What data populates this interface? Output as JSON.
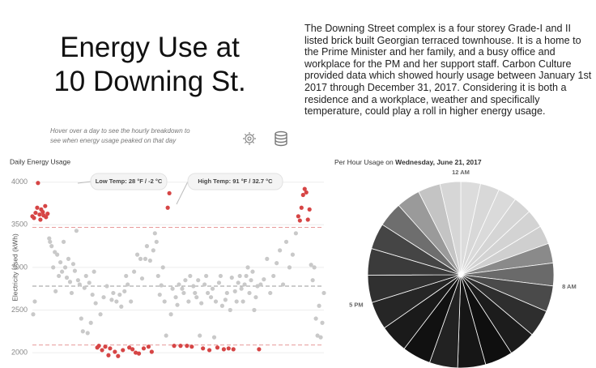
{
  "header": {
    "title": [
      "Energy Use at",
      "10 Downing St."
    ],
    "description": "The Downing Street complex is a four storey Grade-I and II listed brick built Georgian terraced townhouse. It is a home to the Prime Minister and her family, and a busy office and workplace for the PM and her support staff. Carbon Culture provided data  which showed hourly usage between January 1st 2017 through December 31, 2017. Considering it is both a residence and a workplace, weather and specifically temperature, could play a roll in higher energy usage.",
    "hint": "Hover over a day to see the hourly breakdown to see when energy usage peaked on that day"
  },
  "chart_data": [
    {
      "type": "scatter",
      "title": "Daily Energy Usage",
      "y_label": "Electricity Used (kWh)",
      "x": [
        1,
        2,
        3,
        4,
        5,
        7,
        8,
        10,
        11,
        12,
        14,
        15,
        17,
        18,
        20,
        22,
        23,
        25,
        27,
        29,
        30,
        32,
        34,
        36,
        38,
        40,
        42,
        44,
        46,
        48,
        50,
        52,
        54,
        56,
        58,
        60,
        62,
        64,
        66,
        68,
        70,
        72,
        74,
        76,
        78,
        80,
        82,
        84,
        86,
        88,
        90,
        92,
        94,
        96,
        98,
        100,
        102,
        104,
        106,
        108,
        110,
        112,
        114,
        116,
        118,
        120,
        122,
        124,
        126,
        128,
        130,
        132,
        134,
        136,
        138,
        140,
        142,
        144,
        146,
        148,
        150,
        152,
        154,
        156,
        158,
        160,
        162,
        164,
        166,
        168,
        170,
        172,
        174,
        176,
        178,
        180,
        182,
        184,
        186,
        188,
        190,
        192,
        194,
        196,
        198,
        200,
        202,
        204,
        206,
        208,
        210,
        212,
        214,
        216,
        218,
        220,
        222,
        224,
        226,
        228,
        230,
        232,
        234,
        236,
        238,
        240,
        242,
        244,
        246,
        248,
        250,
        252,
        254,
        256,
        258,
        260,
        262,
        264,
        266,
        268,
        270,
        272,
        274,
        276,
        278,
        280,
        282,
        284,
        286,
        290,
        294,
        298,
        302,
        306,
        310,
        314,
        318,
        322,
        326,
        330,
        333,
        335,
        337,
        339,
        341,
        343,
        345,
        347,
        349,
        351,
        353,
        355,
        357,
        359,
        361,
        363,
        365
      ],
      "values": [
        3600,
        2450,
        3580,
        2600,
        3640,
        3700,
        3990,
        3620,
        3560,
        3680,
        3650,
        3610,
        3720,
        3590,
        3630,
        3340,
        3300,
        3250,
        3000,
        3180,
        2720,
        3150,
        2900,
        3060,
        2950,
        3300,
        3000,
        2880,
        3100,
        2830,
        2700,
        3040,
        2960,
        3430,
        2850,
        2800,
        2400,
        2250,
        2760,
        2900,
        2230,
        2820,
        2350,
        2680,
        2950,
        2580,
        2060,
        2080,
        2450,
        2030,
        2650,
        2070,
        2780,
        1970,
        2050,
        2620,
        2700,
        2010,
        2600,
        1960,
        2680,
        2540,
        2030,
        2720,
        2900,
        2800,
        2060,
        2600,
        2040,
        2950,
        2000,
        3150,
        1990,
        3100,
        2870,
        2050,
        3100,
        3250,
        2070,
        3080,
        2010,
        3200,
        3400,
        3300,
        2900,
        2680,
        2790,
        3000,
        2600,
        2200,
        3700,
        3870,
        2450,
        2750,
        2080,
        2650,
        2560,
        2800,
        2080,
        2750,
        2700,
        2850,
        2080,
        2600,
        2900,
        2070,
        2780,
        2700,
        2650,
        2850,
        2200,
        2580,
        2050,
        2800,
        2900,
        2700,
        2030,
        2650,
        2750,
        2180,
        2600,
        2060,
        2820,
        2900,
        2550,
        2040,
        2620,
        2700,
        2050,
        2500,
        2880,
        2040,
        2720,
        2600,
        2820,
        2900,
        2750,
        2600,
        2800,
        2900,
        3000,
        2700,
        2850,
        2950,
        2500,
        2650,
        2780,
        2040,
        2800,
        2860,
        3100,
        2700,
        2900,
        3050,
        3200,
        2800,
        3300,
        3000,
        3150,
        3400,
        3600,
        3550,
        3700,
        3850,
        3920,
        3880,
        3560,
        3680,
        3030,
        2850,
        3000,
        2400,
        2200,
        2550,
        2180,
        2350,
        2700
      ],
      "xlim": [
        1,
        365
      ],
      "ylim": [
        1820,
        4140
      ],
      "yticks": [
        2000,
        2500,
        3000,
        3500,
        4000
      ],
      "grid": true,
      "color": "#c9c9c9",
      "highlight_color": "#d64545",
      "upper_line": 3470,
      "mean_line": 2780,
      "lower_line": 2090,
      "annotations": [
        "Low Temp: 28 °F / -2 °C",
        "High Temp: 91 °F / 32.7 °C"
      ]
    },
    {
      "type": "pie",
      "title": "Per Hour Usage on",
      "date": "Wednesday, June 21, 2017",
      "categories": [
        "12 AM",
        null,
        null,
        null,
        null,
        null,
        null,
        null,
        "8 AM",
        null,
        null,
        null,
        null,
        null,
        null,
        null,
        null,
        "5 PM",
        null,
        null,
        null,
        null,
        null,
        null
      ],
      "values": [
        95,
        92,
        90,
        88,
        88,
        90,
        95,
        110,
        125,
        130,
        132,
        134,
        135,
        136,
        138,
        137,
        135,
        132,
        128,
        125,
        120,
        115,
        108,
        100
      ],
      "colors": [
        "#dcdcdc",
        "#d8d8d8",
        "#dadada",
        "#d5d5d5",
        "#d3d3d3",
        "#cfcfcf",
        "#8a8a8a",
        "#6a6a6a",
        "#4a4a4a",
        "#2e2e2e",
        "#1c1c1c",
        "#0f0f0f",
        "#161616",
        "#222222",
        "#111111",
        "#1a1a1a",
        "#262626",
        "#303030",
        "#3b3b3b",
        "#454545",
        "#6e6e6e",
        "#9a9a9a",
        "#c4c4c4",
        "#d6d6d6"
      ]
    }
  ]
}
